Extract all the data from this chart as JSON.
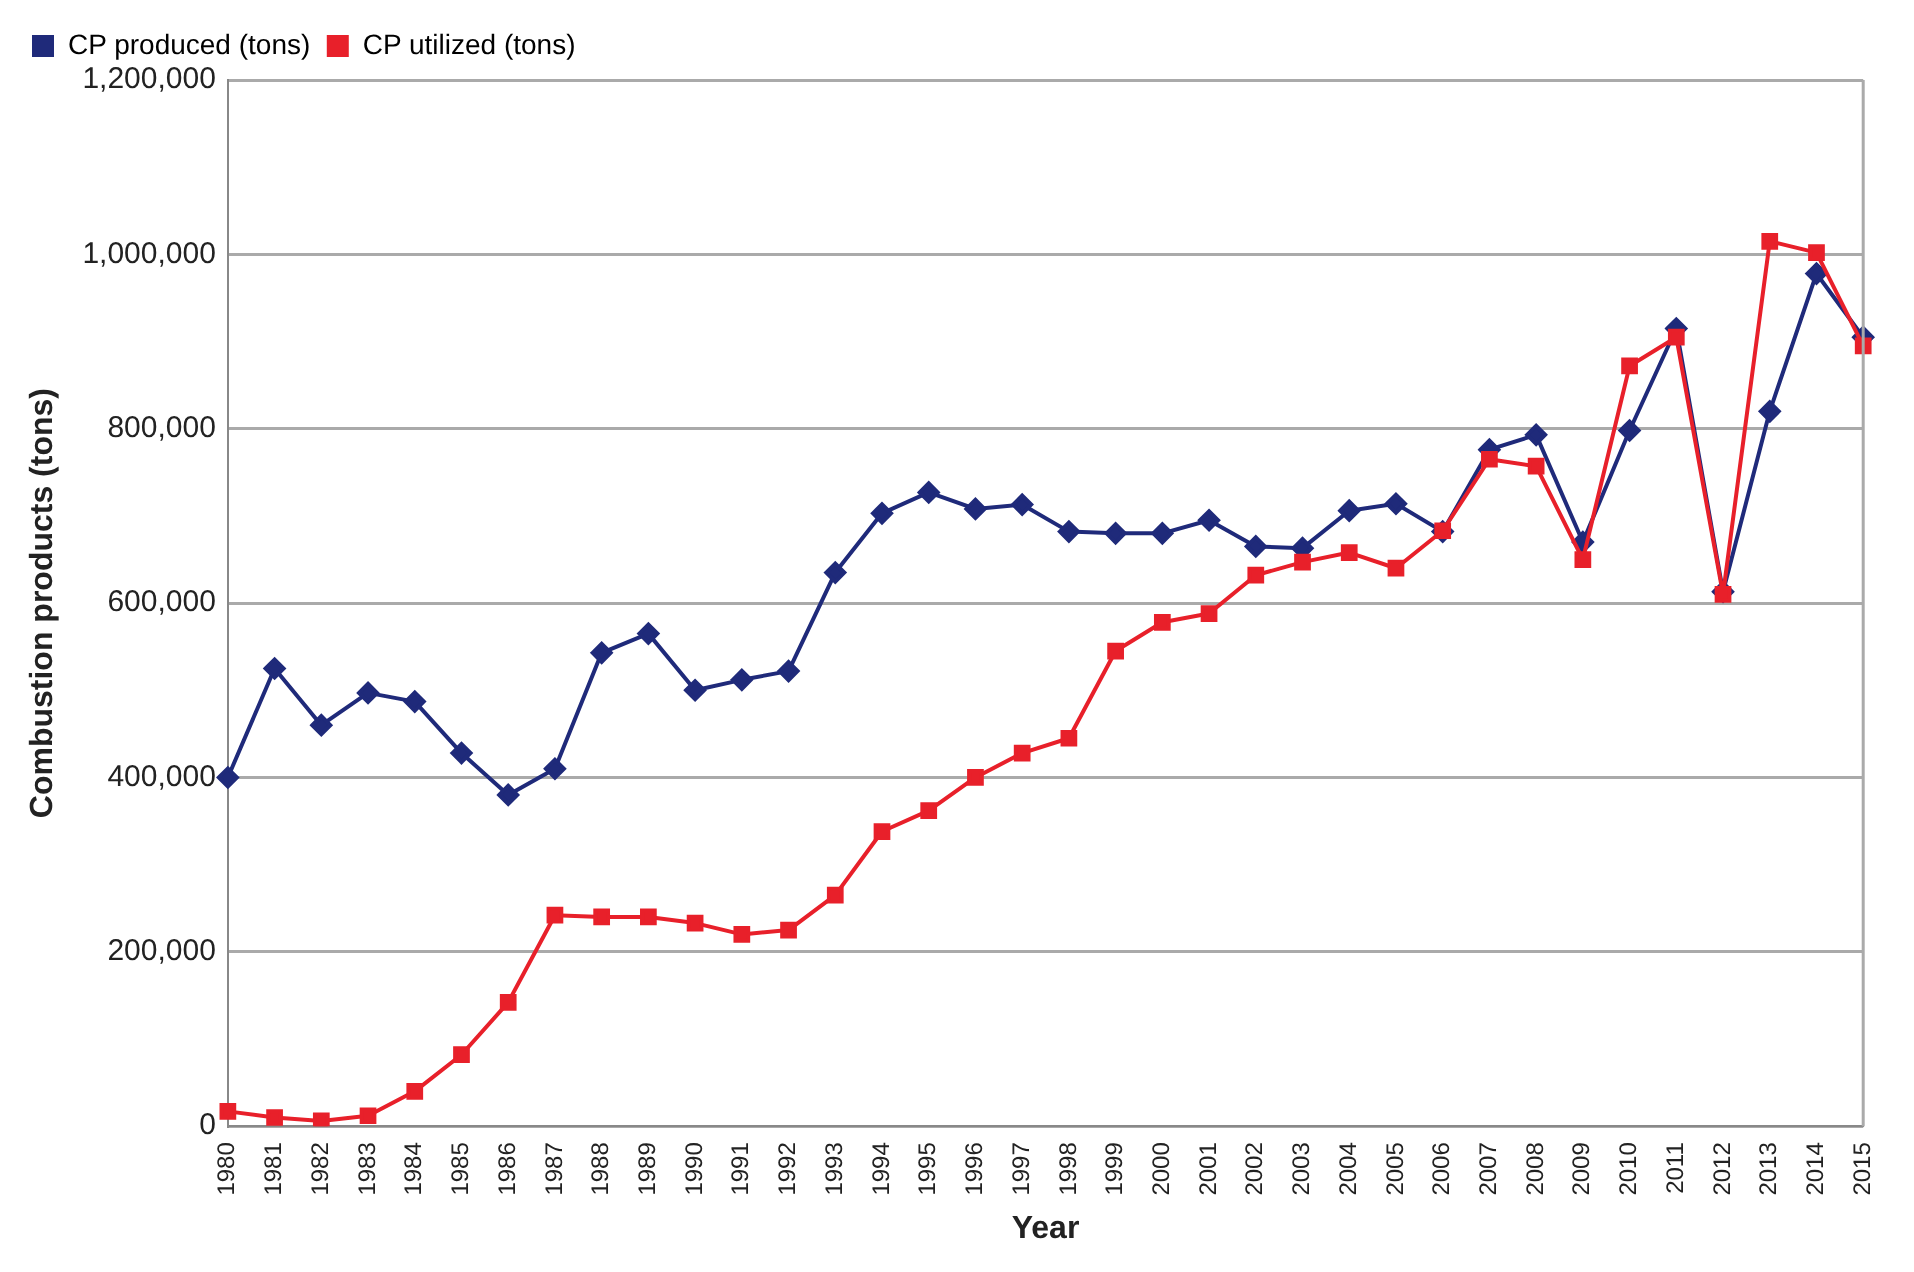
{
  "chart_data": {
    "type": "line",
    "xlabel": "Year",
    "ylabel": "Combustion products (tons)",
    "categories": [
      "1980",
      "1981",
      "1982",
      "1983",
      "1984",
      "1985",
      "1986",
      "1987",
      "1988",
      "1989",
      "1990",
      "1991",
      "1992",
      "1993",
      "1994",
      "1995",
      "1996",
      "1997",
      "1998",
      "1999",
      "2000",
      "2001",
      "2002",
      "2003",
      "2004",
      "2005",
      "2006",
      "2007",
      "2008",
      "2009",
      "2010",
      "2011",
      "2012",
      "2013",
      "2014",
      "2015"
    ],
    "series": [
      {
        "name": "CP produced (tons)",
        "color": "#1f2a7a",
        "marker": "diamond",
        "values": [
          400000,
          525000,
          460000,
          497000,
          487000,
          428000,
          380000,
          410000,
          543000,
          565000,
          500000,
          512000,
          522000,
          635000,
          703000,
          727000,
          708000,
          713000,
          682000,
          680000,
          680000,
          695000,
          665000,
          663000,
          706000,
          714000,
          682000,
          776000,
          793000,
          670000,
          798000,
          915000,
          613000,
          820000,
          978000,
          905000
        ]
      },
      {
        "name": "CP utilized (tons)",
        "color": "#e8202a",
        "marker": "square",
        "values": [
          17000,
          10000,
          6000,
          12000,
          40000,
          82000,
          142000,
          242000,
          240000,
          240000,
          233000,
          220000,
          225000,
          265000,
          338000,
          362000,
          400000,
          428000,
          445000,
          545000,
          578000,
          588000,
          632000,
          647000,
          658000,
          640000,
          683000,
          765000,
          757000,
          650000,
          872000,
          905000,
          610000,
          1015000,
          1002000,
          895000
        ]
      }
    ],
    "ylim": [
      0,
      1200000
    ],
    "yticks": [
      0,
      {
        "value": 200000,
        "label": "200,000"
      },
      {
        "value": 400000,
        "label": "400,000"
      },
      {
        "value": 600000,
        "label": "600,000"
      },
      {
        "value": 800000,
        "label": "800,000"
      },
      {
        "value": 1000000,
        "label": "1,000,000"
      },
      {
        "value": 1200000,
        "label": "1,200,000"
      }
    ],
    "grid": "y",
    "legend": "top left",
    "line_style": "solid"
  }
}
